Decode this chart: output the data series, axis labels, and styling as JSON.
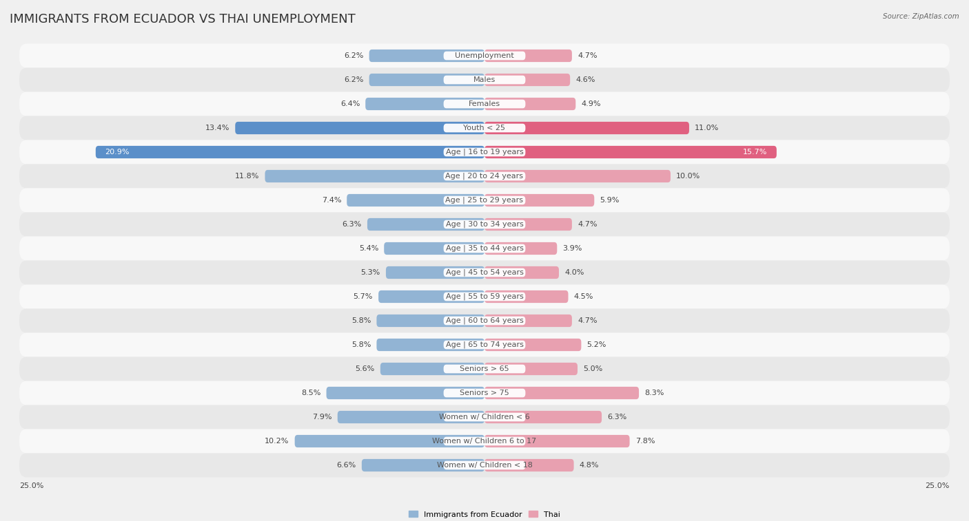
{
  "title": "IMMIGRANTS FROM ECUADOR VS THAI UNEMPLOYMENT",
  "source": "Source: ZipAtlas.com",
  "categories": [
    "Unemployment",
    "Males",
    "Females",
    "Youth < 25",
    "Age | 16 to 19 years",
    "Age | 20 to 24 years",
    "Age | 25 to 29 years",
    "Age | 30 to 34 years",
    "Age | 35 to 44 years",
    "Age | 45 to 54 years",
    "Age | 55 to 59 years",
    "Age | 60 to 64 years",
    "Age | 65 to 74 years",
    "Seniors > 65",
    "Seniors > 75",
    "Women w/ Children < 6",
    "Women w/ Children 6 to 17",
    "Women w/ Children < 18"
  ],
  "left_values": [
    6.2,
    6.2,
    6.4,
    13.4,
    20.9,
    11.8,
    7.4,
    6.3,
    5.4,
    5.3,
    5.7,
    5.8,
    5.8,
    5.6,
    8.5,
    7.9,
    10.2,
    6.6
  ],
  "right_values": [
    4.7,
    4.6,
    4.9,
    11.0,
    15.7,
    10.0,
    5.9,
    4.7,
    3.9,
    4.0,
    4.5,
    4.7,
    5.2,
    5.0,
    8.3,
    6.3,
    7.8,
    4.8
  ],
  "left_color": "#92b4d4",
  "right_color": "#e8a0b0",
  "left_color_highlight": "#5b8fc9",
  "right_color_highlight": "#e06080",
  "highlight_rows": [
    3,
    4
  ],
  "bar_height": 0.52,
  "xlim": 25.0,
  "legend_left": "Immigrants from Ecuador",
  "legend_right": "Thai",
  "bg_color": "#f0f0f0",
  "row_bg_light": "#f8f8f8",
  "row_bg_dark": "#e8e8e8",
  "label_fontsize": 8.0,
  "title_fontsize": 13,
  "value_fontsize": 8.0,
  "center_label_color": "#555555"
}
